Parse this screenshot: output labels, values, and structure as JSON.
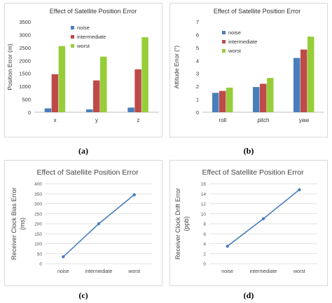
{
  "chart_data": [
    {
      "type": "bar",
      "panel_label": "(a)",
      "title": "Effect of Satellite Position Error",
      "xlabel": "",
      "ylabel": "Position Error (m)",
      "categories": [
        "x",
        "y",
        "z"
      ],
      "ylim": [
        0,
        3500
      ],
      "yticks": [
        "0",
        "500",
        "1000",
        "1500",
        "2000",
        "2500",
        "3000",
        "3500"
      ],
      "grid": false,
      "legend_position": "top-left",
      "series": [
        {
          "name": "noise",
          "color": "#4a7ebb",
          "values": [
            150,
            110,
            180
          ]
        },
        {
          "name": "intermediate",
          "color": "#be4b48",
          "values": [
            1470,
            1230,
            1660
          ]
        },
        {
          "name": "worst",
          "color": "#98cd3a",
          "values": [
            2560,
            2150,
            2900
          ]
        }
      ]
    },
    {
      "type": "bar",
      "panel_label": "(b)",
      "title": "Effect of Satellite Position Error",
      "xlabel": "",
      "ylabel": "Attitude Error (°)",
      "categories": [
        "roll",
        "pitch",
        "yaw"
      ],
      "ylim": [
        0,
        7
      ],
      "yticks": [
        "0",
        "1",
        "2",
        "3",
        "4",
        "5",
        "6",
        "7"
      ],
      "grid": false,
      "legend_position": "top-left",
      "series": [
        {
          "name": "noise",
          "color": "#4a7ebb",
          "values": [
            1.5,
            1.95,
            4.2
          ]
        },
        {
          "name": "intermediate",
          "color": "#be4b48",
          "values": [
            1.65,
            2.2,
            4.85
          ]
        },
        {
          "name": "worst",
          "color": "#98cd3a",
          "values": [
            1.9,
            2.65,
            5.85
          ]
        }
      ]
    },
    {
      "type": "line",
      "panel_label": "(c)",
      "title": "Effect of  Satellite Position Error",
      "xlabel": "",
      "ylabel": "Receiver Clock Bias Error (ms)",
      "ylabel_lines": [
        "Receiver Clock Bias Error",
        "(ms)"
      ],
      "categories": [
        "noise",
        "intermediate",
        "worst"
      ],
      "ylim": [
        0,
        400
      ],
      "yticks": [
        "0",
        "50",
        "100",
        "150",
        "200",
        "250",
        "300",
        "350",
        "400"
      ],
      "grid": true,
      "series": [
        {
          "color": "#4a7ebb",
          "values": [
            35,
            200,
            345
          ]
        }
      ]
    },
    {
      "type": "line",
      "panel_label": "(d)",
      "title": "Effect of  Satellite Position Error",
      "xlabel": "",
      "ylabel": "Receiver Clock Drift Error (ppb)",
      "ylabel_lines": [
        "Receiver Clock Drift Error",
        "(ppb)"
      ],
      "categories": [
        "noise",
        "intermediate",
        "worst"
      ],
      "ylim": [
        0,
        16
      ],
      "yticks": [
        "0",
        "2",
        "4",
        "6",
        "8",
        "10",
        "12",
        "14",
        "16"
      ],
      "grid": true,
      "series": [
        {
          "color": "#4a7ebb",
          "values": [
            3.5,
            9.0,
            14.8
          ]
        }
      ]
    }
  ]
}
